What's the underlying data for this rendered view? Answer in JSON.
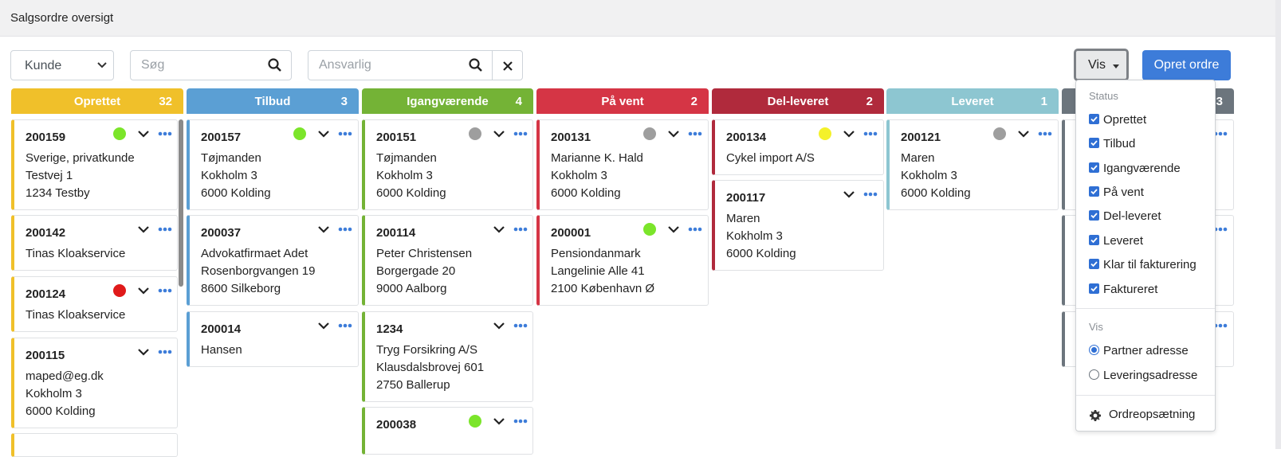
{
  "header": {
    "title": "Salgsordre oversigt"
  },
  "filters": {
    "customer_select": "Kunde",
    "search_placeholder": "Søg",
    "responsible_placeholder": "Ansvarlig"
  },
  "toolbar": {
    "view_label": "Vis",
    "create_label": "Opret ordre"
  },
  "colors": {
    "oprettet": "#f0c02a",
    "tilbud": "#5b9fd4",
    "igangvaerende": "#74b336",
    "paa_vent": "#d53545",
    "del_leveret": "#b02a3c",
    "leveret": "#8dc6d1",
    "hidden": "#6c757d",
    "dot_green": "#7be52a",
    "dot_gray": "#9e9e9e",
    "dot_red": "#e01a1a",
    "dot_yellow": "#f4f12a"
  },
  "columns": [
    {
      "title": "Oprettet",
      "count": "32",
      "cards": [
        {
          "number": "200159",
          "lines": [
            "Sverige, privatkunde",
            "Testvej 1",
            "1234 Testby"
          ],
          "status_dot": "green"
        },
        {
          "number": "200142",
          "lines": [
            "Tinas Kloakservice"
          ]
        },
        {
          "number": "200124",
          "lines": [
            "Tinas Kloakservice"
          ],
          "status_dot": "red"
        },
        {
          "number": "200115",
          "lines": [
            "maped@eg.dk",
            "Kokholm 3",
            "6000 Kolding"
          ]
        }
      ]
    },
    {
      "title": "Tilbud",
      "count": "3",
      "cards": [
        {
          "number": "200157",
          "lines": [
            "Tøjmanden",
            "Kokholm 3",
            "6000 Kolding"
          ],
          "status_dot": "green"
        },
        {
          "number": "200037",
          "lines": [
            "Advokatfirmaet Adet",
            "Rosenborgvangen 19",
            "8600 Silkeborg"
          ]
        },
        {
          "number": "200014",
          "lines": [
            "Hansen"
          ]
        }
      ]
    },
    {
      "title": "Igangværende",
      "count": "4",
      "cards": [
        {
          "number": "200151",
          "lines": [
            "Tøjmanden",
            "Kokholm 3",
            "6000 Kolding"
          ],
          "status_dot": "gray"
        },
        {
          "number": "200114",
          "lines": [
            "Peter Christensen",
            "Borgergade 20",
            "9000 Aalborg"
          ]
        },
        {
          "number": "1234",
          "lines": [
            "Tryg Forsikring A/S",
            "Klausdalsbrovej 601",
            "2750 Ballerup"
          ]
        },
        {
          "number": "200038",
          "lines": [],
          "status_dot": "green"
        }
      ]
    },
    {
      "title": "På vent",
      "count": "2",
      "cards": [
        {
          "number": "200131",
          "lines": [
            "Marianne K. Hald",
            "Kokholm 3",
            "6000 Kolding"
          ],
          "status_dot": "gray"
        },
        {
          "number": "200001",
          "lines": [
            "Pensiondanmark",
            "Langelinie Alle 41",
            "2100 København Ø"
          ],
          "status_dot": "green"
        }
      ]
    },
    {
      "title": "Del-leveret",
      "count": "2",
      "cards": [
        {
          "number": "200134",
          "lines": [
            "Cykel import A/S"
          ],
          "status_dot": "yellow"
        },
        {
          "number": "200117",
          "lines": [
            "Maren",
            "Kokholm 3",
            "6000 Kolding"
          ]
        }
      ]
    },
    {
      "title": "Leveret",
      "count": "1",
      "cards": [
        {
          "number": "200121",
          "lines": [
            "Maren",
            "Kokholm 3",
            "6000 Kolding"
          ],
          "status_dot": "gray"
        }
      ]
    },
    {
      "title": "",
      "count": "3",
      "cards": []
    }
  ],
  "dropdown": {
    "status_header": "Status",
    "status_items": [
      "Oprettet",
      "Tilbud",
      "Igangværende",
      "På vent",
      "Del-leveret",
      "Leveret",
      "Klar til fakturering",
      "Faktureret"
    ],
    "view_header": "Vis",
    "view_options": [
      {
        "label": "Partner adresse",
        "selected": true
      },
      {
        "label": "Leveringsadresse",
        "selected": false
      }
    ],
    "settings_label": "Ordreopsætning"
  }
}
